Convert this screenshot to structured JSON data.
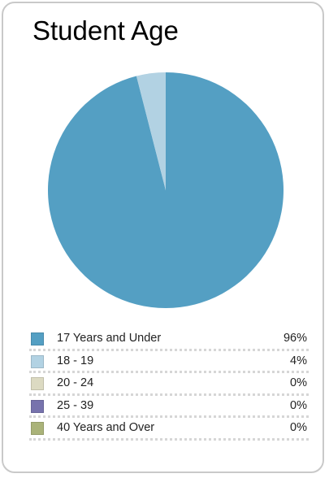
{
  "card": {
    "title": "Student Age"
  },
  "chart_data": {
    "type": "pie",
    "categories": [
      "17 Years and Under",
      "18 - 19",
      "20 - 24",
      "25 - 39",
      "40 Years and Over"
    ],
    "values": [
      96,
      4,
      0,
      0,
      0
    ],
    "value_labels": [
      "96%",
      "4%",
      "0%",
      "0%",
      "0%"
    ],
    "colors": [
      "#549fc3",
      "#b2d2e3",
      "#dcdac2",
      "#7773ad",
      "#aab379"
    ],
    "title": "Student Age",
    "legend": "bottom"
  }
}
